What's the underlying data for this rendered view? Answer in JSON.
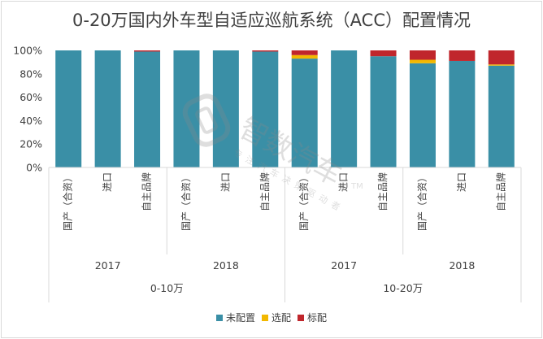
{
  "chart_data": {
    "type": "bar",
    "stacked": true,
    "normalized": true,
    "title": "0-20万国内外车型自适应巡航系统（ACC）配置情况",
    "categories": [
      "国产（合资）",
      "进口",
      "自主品牌",
      "国产（合资）",
      "进口",
      "自主品牌",
      "国产（合资）",
      "进口",
      "自主品牌",
      "国产（合资）",
      "进口",
      "自主品牌"
    ],
    "years": [
      "2017",
      "2018",
      "2017",
      "2018"
    ],
    "price_groups": [
      "0-10万",
      "10-20万"
    ],
    "series": [
      {
        "name": "未配置",
        "color": "#3a8fa6",
        "values": [
          100,
          100,
          99,
          100,
          100,
          99,
          93,
          100,
          95,
          89,
          91,
          87
        ]
      },
      {
        "name": "选配",
        "color": "#f2b800",
        "values": [
          0,
          0,
          0,
          0,
          0,
          0,
          3,
          0,
          0,
          3,
          0,
          1
        ]
      },
      {
        "name": "标配",
        "color": "#c0262c",
        "values": [
          0,
          0,
          1,
          0,
          0,
          1,
          4,
          0,
          5,
          8,
          9,
          12
        ]
      }
    ],
    "yticks": [
      "0%",
      "20%",
      "40%",
      "60%",
      "80%",
      "100%"
    ],
    "ylim": [
      0,
      100
    ],
    "legend_position": "bottom",
    "grid": false
  },
  "watermark": {
    "text": "智数汽车",
    "tm": "TM",
    "subtitle": "专注汽车决策驱动者"
  }
}
